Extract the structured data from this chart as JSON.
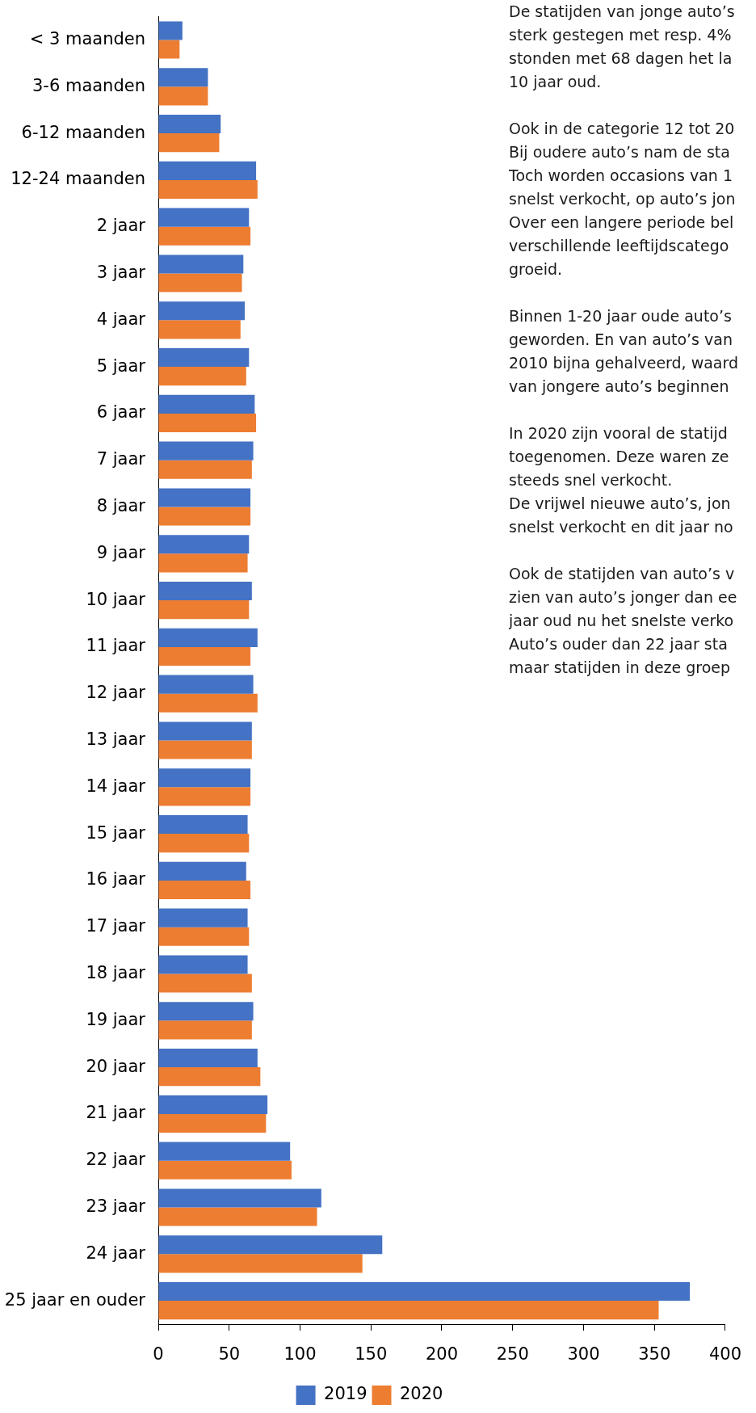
{
  "chart_data": {
    "type": "bar",
    "orientation": "horizontal",
    "categories": [
      "< 3 maanden",
      "3-6 maanden",
      "6-12 maanden",
      "12-24 maanden",
      "2 jaar",
      "3 jaar",
      "4 jaar",
      "5 jaar",
      "6 jaar",
      "7 jaar",
      "8 jaar",
      "9 jaar",
      "10 jaar",
      "11 jaar",
      "12 jaar",
      "13 jaar",
      "14 jaar",
      "15 jaar",
      "16 jaar",
      "17 jaar",
      "18 jaar",
      "19 jaar",
      "20 jaar",
      "21 jaar",
      "22 jaar",
      "23 jaar",
      "24 jaar",
      "25 jaar en ouder"
    ],
    "series": [
      {
        "name": "2019",
        "color": "#4472c4",
        "values": [
          17,
          35,
          44,
          69,
          64,
          60,
          61,
          64,
          68,
          67,
          65,
          64,
          66,
          70,
          67,
          66,
          65,
          63,
          62,
          63,
          63,
          67,
          70,
          77,
          93,
          115,
          158,
          375
        ]
      },
      {
        "name": "2020",
        "color": "#ed7d31",
        "values": [
          15,
          35,
          43,
          70,
          65,
          59,
          58,
          62,
          69,
          66,
          65,
          63,
          64,
          65,
          70,
          66,
          65,
          64,
          65,
          64,
          66,
          66,
          72,
          76,
          94,
          112,
          144,
          353
        ]
      }
    ],
    "xlim": [
      0,
      400
    ],
    "xticks": [
      0,
      50,
      100,
      150,
      200,
      250,
      300,
      350,
      400
    ],
    "grid": false,
    "legend": "bottom",
    "annotations": [
      "De statijden van jonge auto’s\nsterk gestegen met resp. 4%\nstonden met 68 dagen het la\n10 jaar oud.",
      "Ook in de categorie 12 tot 20\nBij oudere auto’s nam de sta\nToch worden occasions van 1\nsnelst verkocht, op auto’s jon\nOver een langere periode bel\nverschillende leeftijdscatego\ngroeid.",
      "Binnen 1-20 jaar oude auto’s\ngeworden. En van auto’s van\n2010 bijna gehalveerd, waard\nvan jongere auto’s beginnen",
      "In 2020 zijn vooral de statijd\ntoegenomen. Deze waren ze\nsteeds snel verkocht.\nDe vrijwel nieuwe auto’s, jon\nsnelst verkocht en dit jaar no",
      "Ook de statijden van auto’s v\nzien van auto’s jonger dan ee\njaar oud nu het snelste verko\nAuto’s ouder dan 22 jaar sta\nmaar statijden in deze groep"
    ]
  }
}
